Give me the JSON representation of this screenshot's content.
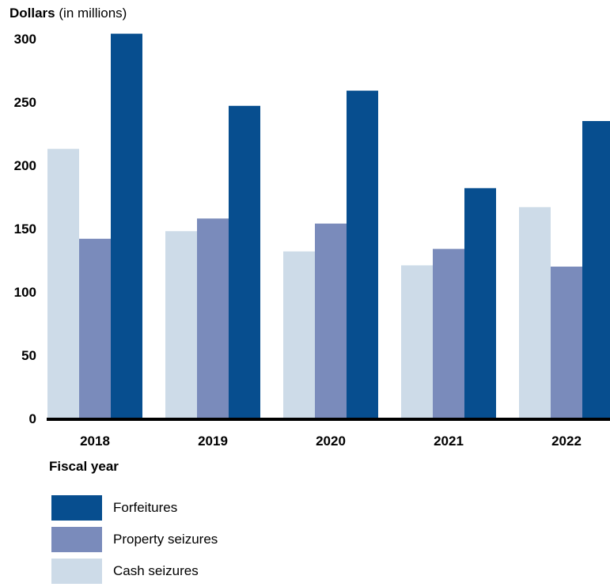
{
  "chart_data": {
    "type": "bar",
    "ylabel_bold": "Dollars",
    "ylabel_unit": "(in millions)",
    "xlabel": "Fiscal year",
    "categories": [
      "2018",
      "2019",
      "2020",
      "2021",
      "2022"
    ],
    "ylim": [
      0,
      300
    ],
    "yticks": [
      0,
      50,
      100,
      150,
      200,
      250,
      300
    ],
    "series": [
      {
        "name": "Cash seizures",
        "color": "#cddbe8",
        "values": [
          213,
          148,
          132,
          121,
          167
        ]
      },
      {
        "name": "Property seizures",
        "color": "#7a8bbb",
        "values": [
          142,
          158,
          154,
          134,
          120
        ]
      },
      {
        "name": "Forfeitures",
        "color": "#074e8f",
        "values": [
          304,
          247,
          259,
          182,
          235
        ]
      }
    ],
    "legend_order": [
      "Forfeitures",
      "Property seizures",
      "Cash seizures"
    ],
    "grid": false,
    "legend_position": "bottom-left"
  }
}
